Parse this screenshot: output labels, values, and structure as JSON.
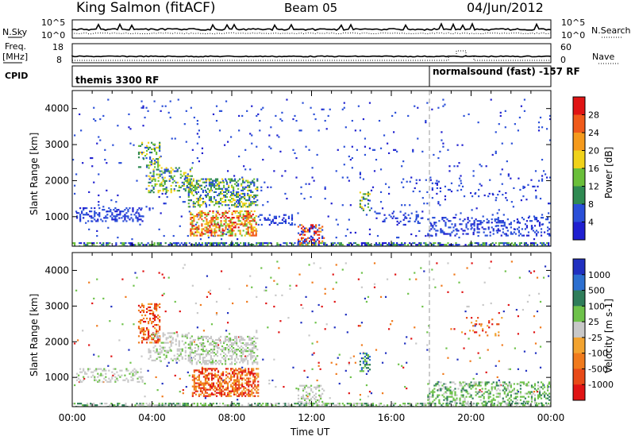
{
  "header": {
    "station": "King Salmon (fitACF)",
    "beam": "Beam 05",
    "date": "04/Jun/2012"
  },
  "noise_panel": {
    "left_label": "N.Sky",
    "right_label": "N.Search",
    "ticks": [
      "10^5",
      "10^0"
    ]
  },
  "freq_panel": {
    "left_label_1": "Freq.",
    "left_label_2": "[MHz]",
    "right_label": "Nave",
    "left_ticks": [
      "18",
      "8"
    ],
    "right_ticks": [
      "60",
      "0"
    ]
  },
  "cpid_panel": {
    "label": "CPID",
    "segment_1": "themis 3300 RF",
    "segment_2": "normalsound (fast) -157 RF"
  },
  "chart_data": [
    {
      "type": "heatmap",
      "title": "",
      "ylabel": "Slant Range [km]",
      "xlabel": "",
      "ylim": [
        180,
        4500
      ],
      "y_ticks": [
        "1000",
        "2000",
        "3000",
        "4000"
      ],
      "colorbar": {
        "label": "Power [dB]",
        "ticks": [
          "4",
          "8",
          "12",
          "16",
          "20",
          "24",
          "28"
        ],
        "colors": [
          "#1f1fd0",
          "#2a4fd8",
          "#2f8a52",
          "#6abf3a",
          "#f0d21a",
          "#f59a1c",
          "#f05a1a",
          "#e01414"
        ]
      }
    },
    {
      "type": "heatmap",
      "title": "",
      "ylabel": "Slant Range [km]",
      "xlabel": "Time UT",
      "ylim": [
        180,
        4500
      ],
      "y_ticks": [
        "1000",
        "2000",
        "3000",
        "4000"
      ],
      "x_ticks": [
        "00:00",
        "04:00",
        "08:00",
        "12:00",
        "16:00",
        "20:00",
        "00:00"
      ],
      "colorbar": {
        "label": "Velocity [m s-1]",
        "ticks": [
          "1000",
          "500",
          "100",
          "25",
          "-25",
          "-100",
          "-500",
          "-1000"
        ],
        "colors": [
          "#2030c0",
          "#2c6fd0",
          "#2f7d5a",
          "#6ec24a",
          "#c8c8c8",
          "#f2a330",
          "#f07a1c",
          "#e84a18",
          "#e01414"
        ]
      }
    }
  ]
}
